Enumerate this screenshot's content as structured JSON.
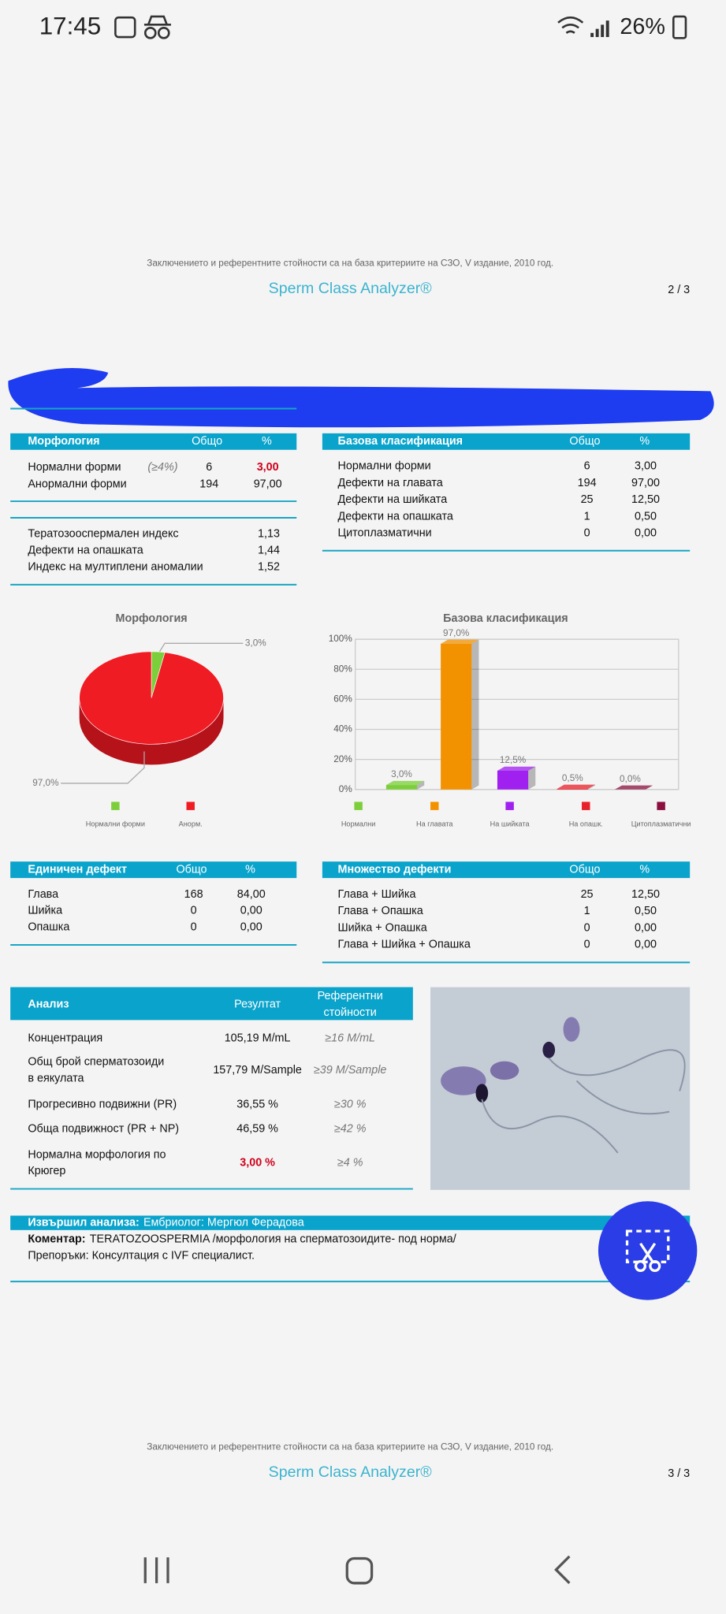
{
  "status_bar": {
    "time": "17:45",
    "battery": "26%"
  },
  "page2_footer": {
    "note": "Заключението и референтните стойности са на база критериите на СЗО,  V издание, 2010 год.",
    "brand": "Sperm Class Analyzer®",
    "page": "2 / 3"
  },
  "morphology_table": {
    "header": [
      "Морфология",
      "Общо",
      "%"
    ],
    "rows": [
      {
        "label": "Нормални форми",
        "reference": "(≥4%)",
        "total": "6",
        "percent": "3,00",
        "color": "#d0021b"
      },
      {
        "label": "Анормални форми",
        "total": "194",
        "percent": "97,00"
      }
    ]
  },
  "indices": {
    "rows": [
      [
        "Тератозооспермален индекс",
        "1,13"
      ],
      [
        "Дефекти на опашката",
        "1,44"
      ],
      [
        "Индекс на мултиплени аномалии",
        "1,52"
      ]
    ]
  },
  "basic_classification_table": {
    "header": [
      "Базова класификация",
      "Общо",
      "%"
    ],
    "rows": [
      {
        "label": "Нормални форми",
        "total": "6",
        "percent": "3,00"
      },
      {
        "label": "Дефекти на главата",
        "total": "194",
        "percent": "97,00"
      },
      {
        "label": "Дефекти на шийката",
        "total": "25",
        "percent": "12,50"
      },
      {
        "label": "Дефекти на опашката",
        "total": "1",
        "percent": "0,50"
      },
      {
        "label": "Цитоплазматични",
        "total": "0",
        "percent": "0,00"
      }
    ]
  },
  "chart_data": [
    {
      "type": "pie",
      "title": "Морфология",
      "categories": [
        "Нормални форми",
        "Анорм."
      ],
      "values": [
        3.0,
        97.0
      ],
      "value_labels": [
        "3,0%",
        "97,0%"
      ],
      "colors": [
        "#7ccf3a",
        "#f01c24"
      ]
    },
    {
      "type": "bar",
      "title": "Базова класификация",
      "categories": [
        "Нормални",
        "На главата",
        "На шийката",
        "На опашк.",
        "Цитоплазматични"
      ],
      "values": [
        3.0,
        97.0,
        12.5,
        0.5,
        0.0
      ],
      "value_labels": [
        "3,0%",
        "97,0%",
        "12,5%",
        "0,5%",
        "0,0%"
      ],
      "colors": [
        "#7ccf3a",
        "#f39200",
        "#a020f0",
        "#e8202a",
        "#8b1040"
      ],
      "ylim": [
        0,
        100
      ],
      "yticks": [
        {
          "value": 0,
          "label": "0%"
        },
        {
          "value": 20,
          "label": "20%"
        },
        {
          "value": 40,
          "label": "40%"
        },
        {
          "value": 60,
          "label": "60%"
        },
        {
          "value": 80,
          "label": "80%"
        },
        {
          "value": 100,
          "label": "100%"
        }
      ],
      "grid": true
    }
  ],
  "single_defect_table": {
    "header": [
      "Единичен дефект",
      "Общо",
      "%"
    ],
    "rows": [
      {
        "label": "Глава",
        "total": "168",
        "percent": "84,00"
      },
      {
        "label": "Шийка",
        "total": "0",
        "percent": "0,00"
      },
      {
        "label": "Опашка",
        "total": "0",
        "percent": "0,00"
      }
    ]
  },
  "multiple_defects_table": {
    "header": [
      "Множество дефекти",
      "Общо",
      "%"
    ],
    "rows": [
      {
        "label": "Глава + Шийка",
        "total": "25",
        "percent": "12,50"
      },
      {
        "label": "Глава + Опашка",
        "total": "1",
        "percent": "0,50"
      },
      {
        "label": "Шийка + Опашка",
        "total": "0",
        "percent": "0,00"
      },
      {
        "label": "Глава + Шийка + Опашка",
        "total": "0",
        "percent": "0,00"
      }
    ]
  },
  "analysis_table": {
    "header": {
      "label": "Анализ",
      "result": "Резултат",
      "reference": [
        "Референтни",
        "стойности"
      ]
    },
    "rows": [
      {
        "label": [
          "Концентрация"
        ],
        "result": "105,19 M/mL",
        "reference": "≥16 M/mL"
      },
      {
        "label": [
          "Общ брой сперматозоиди",
          "в еякулата"
        ],
        "result": "157,79 M/Sample",
        "reference": "≥39 M/Sample"
      },
      {
        "label": [
          "Прогресивно подвижни (PR)"
        ],
        "result": "36,55 %",
        "reference": "≥30 %"
      },
      {
        "label": [
          "Обща подвижност (PR + NP)"
        ],
        "result": "46,59 %",
        "reference": "≥42 %"
      },
      {
        "label": [
          "Нормална морфология по",
          "Крюгер"
        ],
        "result": "3,00 %",
        "reference": "≥4 %",
        "color": "#d0021b"
      }
    ]
  },
  "performed": {
    "label": "Извършил анализа:",
    "value": "Ембриолог: Мергюл Ферадова"
  },
  "comment": {
    "label": "Коментар:",
    "value": "TERATOZOOSPERMIA /морфология на сперматозоидите- под норма/"
  },
  "recommendations": "Препоръки: Консултация с IVF специалист.",
  "page3_footer": {
    "note": "Заключението и референтните стойности са на база критериите на СЗО,  V издание, 2010 год.",
    "brand": "Sperm Class Analyzer®",
    "page": "3 / 3"
  }
}
